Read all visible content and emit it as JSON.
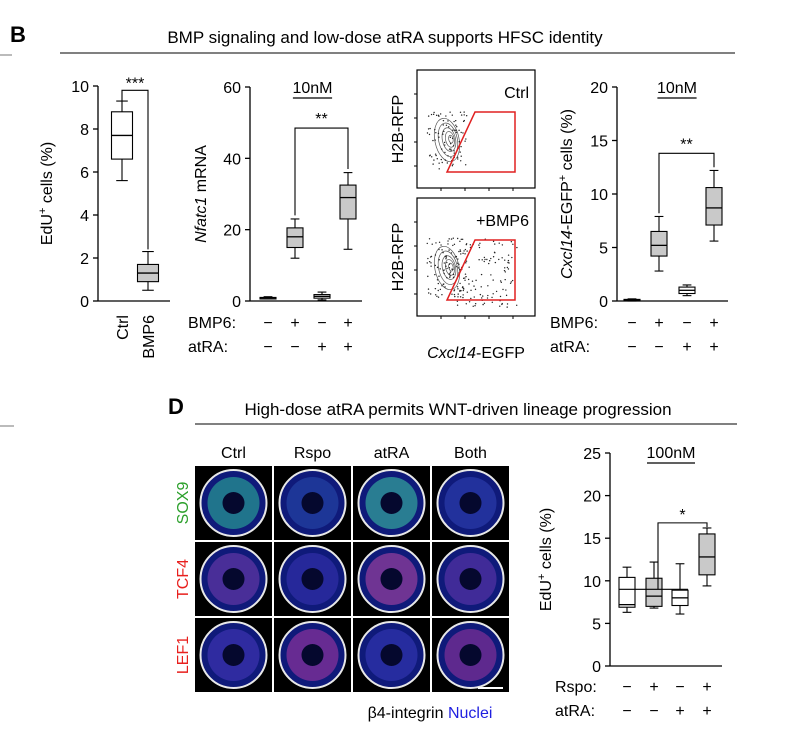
{
  "panel_b": {
    "letter": "B",
    "title": "BMP signaling and low-dose atRA supports HFSC identity"
  },
  "panel_d": {
    "letter": "D",
    "title": "High-dose atRA permits WNT-driven lineage progression",
    "columns": [
      "Ctrl",
      "Rspo",
      "atRA",
      "Both"
    ],
    "rows": [
      {
        "label": "SOX9",
        "color": "#2ca02c"
      },
      {
        "label": "TCF4",
        "color": "#e8201e"
      },
      {
        "label": "LEF1",
        "color": "#e8201e"
      }
    ],
    "legend_left": "β4-integrin",
    "legend_right": "Nuclei",
    "legend_right_color": "#1f1fe0"
  },
  "flow": {
    "ylabel": "H2B-RFP",
    "xlabel_italic": "Cxcl14",
    "xlabel_rest": "-EGFP",
    "top_label": "Ctrl",
    "bottom_label": "+BMP6",
    "gate_color": "#e02020"
  },
  "colors": {
    "box_gray": "#c9c9c9",
    "box_white": "#ffffff",
    "stroke": "#000000"
  },
  "chart_data": [
    {
      "id": "edu_b",
      "type": "box",
      "ylabel_pre": "EdU",
      "ylabel_sup": "+",
      "ylabel_post": " cells (%)",
      "ylim": [
        0,
        10
      ],
      "yticks": [
        "0",
        "2",
        "4",
        "6",
        "8",
        "10"
      ],
      "categories": [
        "Ctrl",
        "BMP6"
      ],
      "boxes": [
        {
          "min": 5.6,
          "q1": 6.6,
          "median": 7.7,
          "q3": 8.8,
          "max": 9.3,
          "fill": "white"
        },
        {
          "min": 0.5,
          "q1": 0.9,
          "median": 1.3,
          "q3": 1.7,
          "max": 2.3,
          "fill": "gray"
        }
      ],
      "significance": [
        {
          "from": 0,
          "to": 1,
          "label": "***"
        }
      ]
    },
    {
      "id": "nfatc1",
      "type": "box",
      "ylabel_italic": "Nfatc1",
      "ylabel_post": " mRNA",
      "header": "10nM",
      "ylim": [
        0,
        60
      ],
      "yticks": [
        "0",
        "20",
        "40",
        "60"
      ],
      "conditions": [
        {
          "name": "BMP6:",
          "values": [
            "−",
            "+",
            "−",
            "+"
          ]
        },
        {
          "name": "atRA:",
          "values": [
            "−",
            "−",
            "+",
            "+"
          ]
        }
      ],
      "boxes": [
        {
          "min": 0.6,
          "q1": 0.8,
          "median": 0.9,
          "q3": 1.0,
          "max": 1.2,
          "fill": "white"
        },
        {
          "min": 12,
          "q1": 15,
          "median": 18,
          "q3": 20.5,
          "max": 23,
          "fill": "gray"
        },
        {
          "min": 0.3,
          "q1": 0.8,
          "median": 1.3,
          "q3": 1.8,
          "max": 2.5,
          "fill": "white"
        },
        {
          "min": 14.5,
          "q1": 23,
          "median": 29,
          "q3": 32.5,
          "max": 36,
          "fill": "gray"
        }
      ],
      "significance": [
        {
          "from": 1,
          "to": 3,
          "label": "**"
        }
      ]
    },
    {
      "id": "cxcl14",
      "type": "box",
      "ylabel_italic": "Cxcl14",
      "ylabel_post": "-EGFP",
      "ylabel_sup": "+",
      "ylabel_post2": " cells (%)",
      "header": "10nM",
      "ylim": [
        0,
        20
      ],
      "yticks": [
        "0",
        "5",
        "10",
        "15",
        "20"
      ],
      "conditions": [
        {
          "name": "BMP6:",
          "values": [
            "−",
            "+",
            "−",
            "+"
          ]
        },
        {
          "name": "atRA:",
          "values": [
            "−",
            "−",
            "+",
            "+"
          ]
        }
      ],
      "boxes": [
        {
          "min": 0.0,
          "q1": 0.05,
          "median": 0.1,
          "q3": 0.15,
          "max": 0.2,
          "fill": "white"
        },
        {
          "min": 2.8,
          "q1": 4.2,
          "median": 5.2,
          "q3": 6.5,
          "max": 7.9,
          "fill": "gray"
        },
        {
          "min": 0.5,
          "q1": 0.7,
          "median": 1.0,
          "q3": 1.3,
          "max": 1.5,
          "fill": "white"
        },
        {
          "min": 5.6,
          "q1": 7.1,
          "median": 8.7,
          "q3": 10.6,
          "max": 12.2,
          "fill": "gray"
        }
      ],
      "significance": [
        {
          "from": 1,
          "to": 3,
          "label": "**"
        }
      ]
    },
    {
      "id": "edu_d",
      "type": "box",
      "ylabel_pre": "EdU",
      "ylabel_sup": "+",
      "ylabel_post": " cells (%)",
      "header": "100nM",
      "ylim": [
        0,
        25
      ],
      "yticks": [
        "0",
        "5",
        "10",
        "15",
        "20",
        "25"
      ],
      "conditions": [
        {
          "name": "Rspo:",
          "values": [
            "−",
            "+",
            "−",
            "+"
          ]
        },
        {
          "name": "atRA:",
          "values": [
            "−",
            "−",
            "+",
            "+"
          ]
        }
      ],
      "boxes": [
        {
          "min": 6.3,
          "q1": 6.9,
          "median": 7.2,
          "q3": 10.4,
          "max": 11.6,
          "fill": "white"
        },
        {
          "min": 6.8,
          "q1": 7.0,
          "median": 8.2,
          "q3": 10.3,
          "max": 12.2,
          "fill": "gray"
        },
        {
          "min": 6.1,
          "q1": 7.1,
          "median": 8.0,
          "q3": 8.9,
          "max": 12.0,
          "fill": "white"
        },
        {
          "min": 9.4,
          "q1": 10.7,
          "median": 12.8,
          "q3": 15.5,
          "max": 16.2,
          "fill": "gray"
        }
      ],
      "significance": [
        {
          "group_from": [
            0,
            2
          ],
          "to": 3,
          "label": "*"
        }
      ]
    }
  ]
}
